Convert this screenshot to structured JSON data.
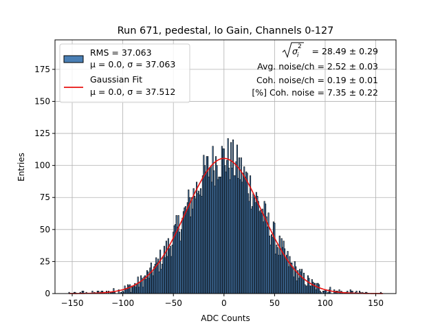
{
  "chart_data": {
    "type": "bar",
    "title": "Run 671, pedestal, lo Gain, Channels 0-127",
    "xlabel": "ADC Counts",
    "ylabel": "Entries",
    "xlim": [
      -167,
      170
    ],
    "ylim": [
      0,
      198
    ],
    "xticks": [
      -150,
      -100,
      -50,
      0,
      50,
      100,
      150
    ],
    "yticks": [
      0,
      25,
      50,
      75,
      100,
      125,
      150,
      175
    ],
    "grid": true,
    "legend_position": "top-left",
    "bin_width": 1,
    "histogram": {
      "name": "RMS = 37.063",
      "name_line2": "μ = 0.0, σ = 37.063",
      "color": "#4a7fb5",
      "edge_color": "#000000",
      "x_range": [
        -153,
        155
      ]
    },
    "fit": {
      "name": "Gaussian Fit",
      "name_line2": "μ = 0.0, σ = 37.512",
      "color": "#e8110f",
      "mu": 0.0,
      "sigma": 37.512,
      "peak": 105.5
    },
    "annotations": {
      "sigma_i_value": "= 28.49 ± 0.29",
      "avg_noise": "Avg. noise/ch = 2.52 ± 0.03",
      "coh_noise": "Coh. noise/ch = 0.19 ± 0.01",
      "coh_noise_pct": "[%] Coh. noise = 7.35 ± 0.22"
    }
  }
}
